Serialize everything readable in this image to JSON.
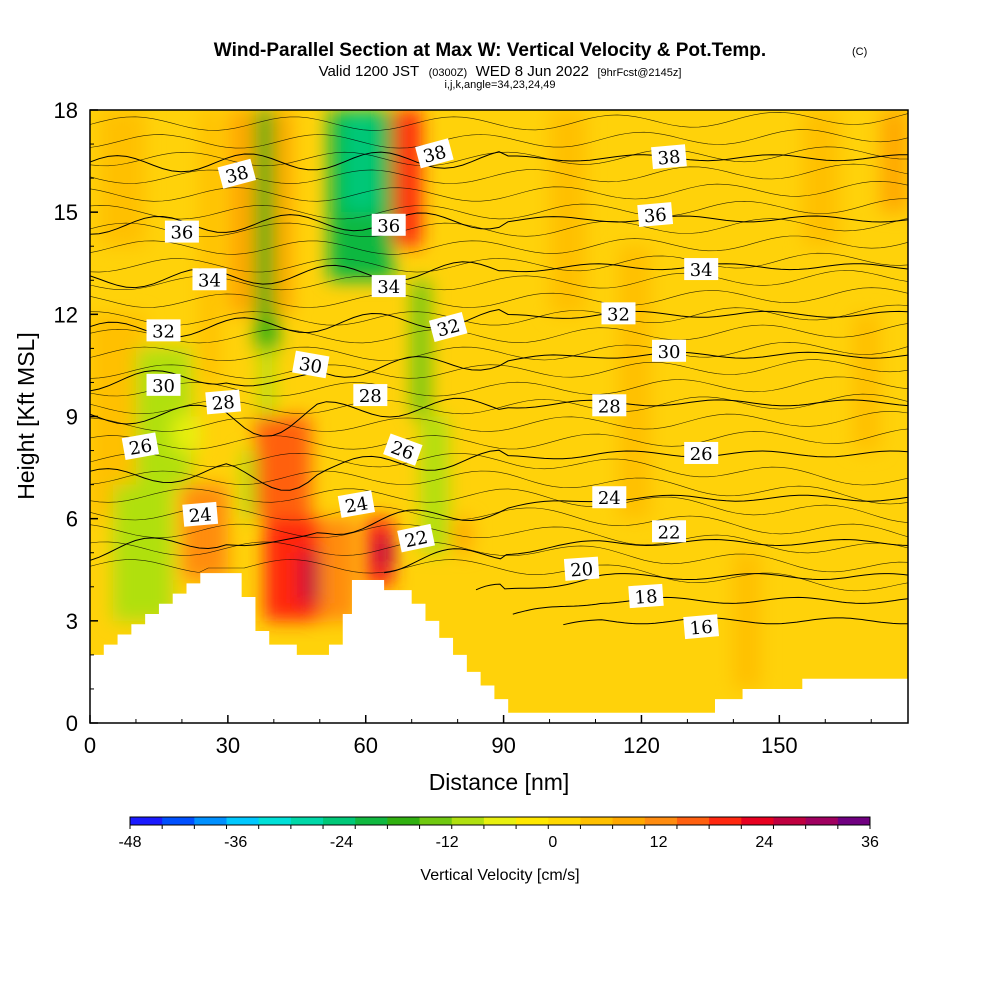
{
  "chart_data": {
    "type": "heatmap",
    "title": "Wind-Parallel Section at Max W: Vertical Velocity & Pot.Temp.",
    "title_mark": "(C)",
    "subtitle": {
      "valid": "Valid 1200 JST",
      "utc": "(0300Z)",
      "date": "WED 8 Jun 2022",
      "forecast": "[9hrFcst@2145z]"
    },
    "params_line": "i,j,k,angle=34,23,24,49",
    "xlabel": "Distance [nm]",
    "ylabel": "Height [Kft MSL]",
    "xlim": [
      0,
      178
    ],
    "ylim": [
      0,
      18
    ],
    "x_ticks": [
      "0",
      "30",
      "60",
      "90",
      "120",
      "150"
    ],
    "y_ticks": [
      "0",
      "3",
      "6",
      "9",
      "12",
      "15",
      "18"
    ],
    "grid": false,
    "colorbar": {
      "title": "Vertical Velocity [cm/s]",
      "min": -48,
      "max": 36,
      "step": 4,
      "tick_labels": [
        "-48",
        "-36",
        "-24",
        "-12",
        "0",
        "12",
        "24",
        "36"
      ],
      "colors": [
        "#1a1aff",
        "#0050ff",
        "#0090ff",
        "#00c8ff",
        "#00e0d8",
        "#00d8a8",
        "#00c878",
        "#10b840",
        "#30b010",
        "#70c810",
        "#b0e010",
        "#e8f010",
        "#ffe800",
        "#ffd800",
        "#ffc000",
        "#ffa800",
        "#ff8c10",
        "#ff6010",
        "#ff2810",
        "#e80020",
        "#c00040",
        "#a00060",
        "#700080"
      ]
    },
    "velocity_cells": [
      {
        "x": [
          0,
          12
        ],
        "y": [
          6,
          12
        ],
        "w": 8
      },
      {
        "x": [
          2,
          12
        ],
        "y": [
          14,
          18
        ],
        "w": 8
      },
      {
        "x": [
          5,
          18
        ],
        "y": [
          3,
          7
        ],
        "w": -8
      },
      {
        "x": [
          10,
          22
        ],
        "y": [
          7,
          11
        ],
        "w": -6
      },
      {
        "x": [
          18,
          24
        ],
        "y": [
          8,
          9
        ],
        "w": -4
      },
      {
        "x": [
          20,
          30
        ],
        "y": [
          4.2,
          7
        ],
        "w": 16
      },
      {
        "x": [
          24,
          28
        ],
        "y": [
          10,
          18
        ],
        "w": 8
      },
      {
        "x": [
          30,
          36
        ],
        "y": [
          12,
          18
        ],
        "w": 12
      },
      {
        "x": [
          33,
          36
        ],
        "y": [
          6,
          8
        ],
        "w": -6
      },
      {
        "x": [
          36,
          41
        ],
        "y": [
          11,
          18
        ],
        "w": -14
      },
      {
        "x": [
          37,
          40
        ],
        "y": [
          9,
          11
        ],
        "w": -8
      },
      {
        "x": [
          40,
          44
        ],
        "y": [
          12,
          18
        ],
        "w": 12
      },
      {
        "x": [
          36,
          48
        ],
        "y": [
          6,
          9
        ],
        "w": 20
      },
      {
        "x": [
          38,
          52
        ],
        "y": [
          3,
          6
        ],
        "w": 24
      },
      {
        "x": [
          46,
          52
        ],
        "y": [
          3.5,
          5
        ],
        "w": 32
      },
      {
        "x": [
          50,
          58
        ],
        "y": [
          3,
          6
        ],
        "w": 16
      },
      {
        "x": [
          52,
          66
        ],
        "y": [
          13,
          18
        ],
        "w": -20
      },
      {
        "x": [
          55,
          63
        ],
        "y": [
          15,
          18
        ],
        "w": -24
      },
      {
        "x": [
          60,
          66
        ],
        "y": [
          4,
          6
        ],
        "w": 24
      },
      {
        "x": [
          62,
          66
        ],
        "y": [
          4.5,
          5.5
        ],
        "w": 32
      },
      {
        "x": [
          66,
          72
        ],
        "y": [
          14,
          18
        ],
        "w": 24
      },
      {
        "x": [
          70,
          74
        ],
        "y": [
          9,
          13
        ],
        "w": -12
      },
      {
        "x": [
          72,
          78
        ],
        "y": [
          5,
          9
        ],
        "w": -6
      },
      {
        "x": [
          79,
          83
        ],
        "y": [
          5,
          6
        ],
        "w": 12
      },
      {
        "x": [
          100,
          108
        ],
        "y": [
          12,
          18
        ],
        "w": 8
      },
      {
        "x": [
          115,
          122
        ],
        "y": [
          6,
          14
        ],
        "w": 8
      },
      {
        "x": [
          140,
          146
        ],
        "y": [
          1,
          5
        ],
        "w": 8
      },
      {
        "x": [
          155,
          163
        ],
        "y": [
          14,
          18
        ],
        "w": 8
      },
      {
        "x": [
          166,
          172
        ],
        "y": [
          8,
          12
        ],
        "w": 8
      },
      {
        "x": [
          172,
          178
        ],
        "y": [
          15,
          18
        ],
        "w": 12
      }
    ],
    "terrain": [
      [
        0,
        2
      ],
      [
        3,
        2
      ],
      [
        3,
        2.3
      ],
      [
        6,
        2.3
      ],
      [
        6,
        2.6
      ],
      [
        9,
        2.6
      ],
      [
        9,
        2.9
      ],
      [
        12,
        2.9
      ],
      [
        12,
        3.2
      ],
      [
        15,
        3.2
      ],
      [
        15,
        3.5
      ],
      [
        18,
        3.5
      ],
      [
        18,
        3.8
      ],
      [
        21,
        3.8
      ],
      [
        21,
        4.1
      ],
      [
        24,
        4.1
      ],
      [
        24,
        4.4
      ],
      [
        33,
        4.4
      ],
      [
        33,
        3.7
      ],
      [
        36,
        3.7
      ],
      [
        36,
        2.7
      ],
      [
        39,
        2.7
      ],
      [
        39,
        2.3
      ],
      [
        45,
        2.3
      ],
      [
        45,
        2
      ],
      [
        52,
        2
      ],
      [
        52,
        2.3
      ],
      [
        55,
        2.3
      ],
      [
        55,
        3.2
      ],
      [
        57,
        3.2
      ],
      [
        57,
        4.2
      ],
      [
        64,
        4.2
      ],
      [
        64,
        3.9
      ],
      [
        70,
        3.9
      ],
      [
        70,
        3.5
      ],
      [
        73,
        3.5
      ],
      [
        73,
        3.0
      ],
      [
        76,
        3.0
      ],
      [
        76,
        2.5
      ],
      [
        79,
        2.5
      ],
      [
        79,
        2.0
      ],
      [
        82,
        2.0
      ],
      [
        82,
        1.5
      ],
      [
        85,
        1.5
      ],
      [
        85,
        1.1
      ],
      [
        88,
        1.1
      ],
      [
        88,
        0.7
      ],
      [
        91,
        0.7
      ],
      [
        91,
        0.3
      ],
      [
        106,
        0.3
      ],
      [
        106,
        0.3
      ],
      [
        136,
        0.3
      ],
      [
        136,
        0.7
      ],
      [
        142,
        0.7
      ],
      [
        142,
        1.0
      ],
      [
        155,
        1.0
      ],
      [
        155,
        1.3
      ],
      [
        178,
        1.3
      ]
    ],
    "isentropes": [
      {
        "value": 16,
        "y0": 0.5,
        "y1": 3.0,
        "x_start": 103
      },
      {
        "value": 18,
        "y0": 1.0,
        "y1": 3.6,
        "x_start": 92
      },
      {
        "value": 20,
        "y0": 2.0,
        "y1": 4.3,
        "x_start": 84
      },
      {
        "value": 22,
        "y0": 3.8,
        "y1": 5.3,
        "x_start": 64
      },
      {
        "value": 24,
        "y0": 5.0,
        "y1": 6.6,
        "x_start": 0
      },
      {
        "value": 26,
        "y0": 7.2,
        "y1": 7.9,
        "x_start": 0
      },
      {
        "value": 28,
        "y0": 9.0,
        "y1": 9.4,
        "x_start": 0
      },
      {
        "value": 30,
        "y0": 10.0,
        "y1": 10.8,
        "x_start": 0
      },
      {
        "value": 32,
        "y0": 11.5,
        "y1": 12.0,
        "x_start": 0
      },
      {
        "value": 34,
        "y0": 13.0,
        "y1": 13.4,
        "x_start": 0
      },
      {
        "value": 36,
        "y0": 14.6,
        "y1": 14.8,
        "x_start": 0
      },
      {
        "value": 38,
        "y0": 16.4,
        "y1": 16.6,
        "x_start": 0
      }
    ],
    "contour_labels": [
      {
        "text": "16",
        "x": 133,
        "y": 2.8,
        "rot": -5
      },
      {
        "text": "18",
        "x": 121,
        "y": 3.7,
        "rot": -4
      },
      {
        "text": "20",
        "x": 107,
        "y": 4.5,
        "rot": -4
      },
      {
        "text": "22",
        "x": 71,
        "y": 5.4,
        "rot": -12
      },
      {
        "text": "22",
        "x": 126,
        "y": 5.6,
        "rot": 0
      },
      {
        "text": "24",
        "x": 24,
        "y": 6.1,
        "rot": -5
      },
      {
        "text": "24",
        "x": 58,
        "y": 6.4,
        "rot": -10
      },
      {
        "text": "24",
        "x": 113,
        "y": 6.6,
        "rot": 0
      },
      {
        "text": "26",
        "x": 11,
        "y": 8.1,
        "rot": -10
      },
      {
        "text": "26",
        "x": 68,
        "y": 8.0,
        "rot": 20
      },
      {
        "text": "26",
        "x": 133,
        "y": 7.9,
        "rot": 0
      },
      {
        "text": "28",
        "x": 29,
        "y": 9.4,
        "rot": -5
      },
      {
        "text": "28",
        "x": 61,
        "y": 9.6,
        "rot": 0
      },
      {
        "text": "28",
        "x": 113,
        "y": 9.3,
        "rot": 0
      },
      {
        "text": "30",
        "x": 16,
        "y": 9.9,
        "rot": 0
      },
      {
        "text": "30",
        "x": 48,
        "y": 10.5,
        "rot": 10
      },
      {
        "text": "30",
        "x": 126,
        "y": 10.9,
        "rot": 0
      },
      {
        "text": "32",
        "x": 16,
        "y": 11.5,
        "rot": 0
      },
      {
        "text": "32",
        "x": 78,
        "y": 11.6,
        "rot": -15
      },
      {
        "text": "32",
        "x": 115,
        "y": 12.0,
        "rot": 0
      },
      {
        "text": "34",
        "x": 26,
        "y": 13.0,
        "rot": 0
      },
      {
        "text": "34",
        "x": 65,
        "y": 12.8,
        "rot": 0
      },
      {
        "text": "34",
        "x": 133,
        "y": 13.3,
        "rot": 0
      },
      {
        "text": "36",
        "x": 20,
        "y": 14.4,
        "rot": 0
      },
      {
        "text": "36",
        "x": 65,
        "y": 14.6,
        "rot": 0
      },
      {
        "text": "36",
        "x": 123,
        "y": 14.9,
        "rot": -5
      },
      {
        "text": "38",
        "x": 32,
        "y": 16.1,
        "rot": -15
      },
      {
        "text": "38",
        "x": 75,
        "y": 16.7,
        "rot": -15
      },
      {
        "text": "38",
        "x": 126,
        "y": 16.6,
        "rot": -5
      }
    ]
  }
}
